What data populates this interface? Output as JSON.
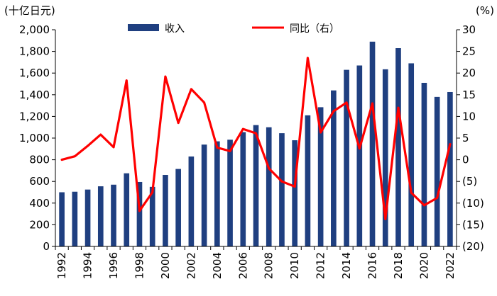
{
  "chart_data": {
    "type": "bar+line",
    "left_unit": "(十亿日元)",
    "right_unit": "(%)",
    "legend": {
      "bar": "收入",
      "line": "同比（右）"
    },
    "colors": {
      "bar": "#1f3f80",
      "line": "#ff0000"
    },
    "categories": [
      1992,
      1993,
      1994,
      1995,
      1996,
      1997,
      1998,
      1999,
      2000,
      2001,
      2002,
      2003,
      2004,
      2005,
      2006,
      2007,
      2008,
      2009,
      2010,
      2011,
      2012,
      2013,
      2014,
      2015,
      2016,
      2017,
      2018,
      2019,
      2020,
      2021,
      2022
    ],
    "x_tick_labels": [
      "1992",
      "1994",
      "1996",
      "1998",
      "2000",
      "2002",
      "2004",
      "2006",
      "2008",
      "2010",
      "2012",
      "2014",
      "2016",
      "2018",
      "2020",
      "2022"
    ],
    "series": [
      {
        "name": "收入",
        "axis": "left",
        "type": "bar",
        "values": [
          500,
          505,
          525,
          555,
          570,
          675,
          595,
          550,
          660,
          715,
          830,
          940,
          970,
          985,
          1055,
          1120,
          1100,
          1045,
          980,
          1210,
          1285,
          1440,
          1630,
          1670,
          1890,
          1635,
          1830,
          1690,
          1510,
          1380,
          1425
        ]
      },
      {
        "name": "同比（右）",
        "axis": "right",
        "type": "line",
        "values": [
          0,
          0.8,
          3.2,
          5.8,
          2.9,
          18.3,
          -11.8,
          -7.5,
          19.2,
          8.5,
          16.3,
          13.2,
          2.8,
          2.0,
          7.1,
          6.1,
          -2.0,
          -5.0,
          -6.2,
          23.5,
          6.3,
          11.2,
          13.2,
          2.6,
          13.0,
          -13.7,
          12.0,
          -7.6,
          -10.5,
          -8.8,
          3.6
        ]
      }
    ],
    "left_axis": {
      "min": 0,
      "max": 2000,
      "step": 200,
      "labels": [
        "0",
        "200",
        "400",
        "600",
        "800",
        "1,000",
        "1,200",
        "1,400",
        "1,600",
        "1,800",
        "2,000"
      ]
    },
    "right_axis": {
      "min": -20,
      "max": 30,
      "step": 5,
      "labels": [
        "(20)",
        "(15)",
        "(10)",
        "(5)",
        "0",
        "5",
        "10",
        "15",
        "20",
        "25",
        "30"
      ]
    }
  }
}
